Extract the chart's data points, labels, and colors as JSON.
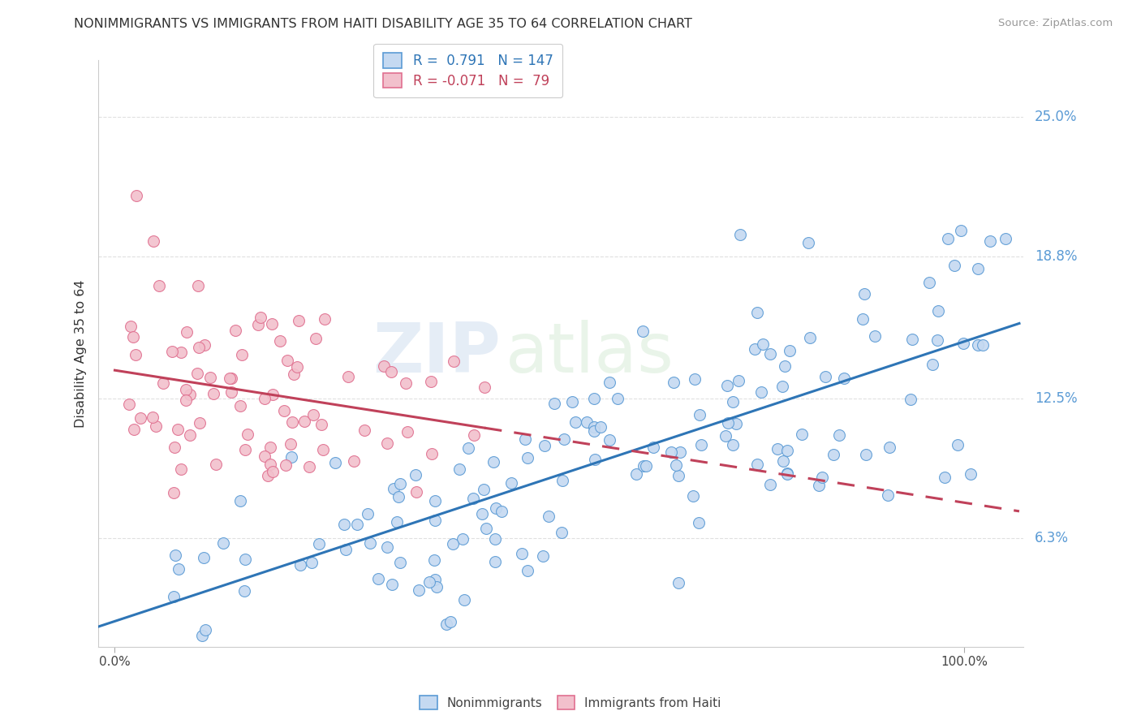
{
  "title": "NONIMMIGRANTS VS IMMIGRANTS FROM HAITI DISABILITY AGE 35 TO 64 CORRELATION CHART",
  "source": "Source: ZipAtlas.com",
  "ylabel": "Disability Age 35 to 64",
  "ytick_labels": [
    "6.3%",
    "12.5%",
    "18.8%",
    "25.0%"
  ],
  "ytick_values": [
    0.063,
    0.125,
    0.188,
    0.25
  ],
  "xlim": [
    -0.02,
    1.07
  ],
  "ylim": [
    0.015,
    0.275
  ],
  "legend_blue_r": "R =  0.791",
  "legend_blue_n": "N = 147",
  "legend_pink_r": "R = -0.071",
  "legend_pink_n": "N =  79",
  "blue_fill": "#c5d9f1",
  "pink_fill": "#f2c0cc",
  "blue_edge": "#5b9bd5",
  "pink_edge": "#e07090",
  "blue_line_color": "#2e75b6",
  "pink_line_color": "#c0415a",
  "background_color": "#ffffff",
  "watermark_zip": "ZIP",
  "watermark_atlas": "atlas",
  "grid_color": "#e0e0e0",
  "tick_color": "#5b9bd5",
  "ytick_right_color": "#5b9bd5"
}
